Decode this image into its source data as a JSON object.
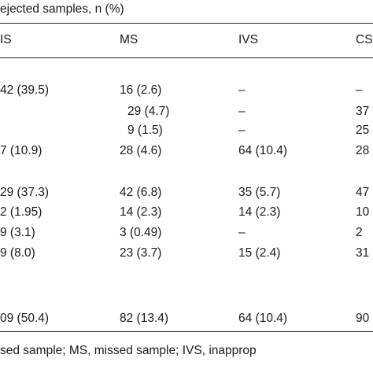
{
  "table": {
    "caption": "ejected samples, n (%)",
    "header": [
      "IS",
      "MS",
      "IVS",
      "CS"
    ],
    "rows": [
      [
        "42 (39.5)",
        "16 (2.6)",
        "–",
        "–"
      ],
      [
        null,
        "29 (4.7)",
        "–",
        "37"
      ],
      [
        null,
        "9 (1.5)",
        "–",
        "25"
      ],
      [
        "7 (10.9)",
        "28 (4.6)",
        "64 (10.4)",
        "28"
      ],
      [
        "29 (37.3)",
        "42 (6.8)",
        "35 (5.7)",
        "47"
      ],
      [
        "2 (1.95)",
        "14 (2.3)",
        "14 (2.3)",
        "10"
      ],
      [
        "9 (3.1)",
        "3 (0.49)",
        "–",
        "2"
      ],
      [
        "9 (8.0)",
        "23 (3.7)",
        "15 (2.4)",
        "31"
      ],
      [
        "09 (50.4)",
        "82 (13.4)",
        "64 (10.4)",
        "90"
      ]
    ],
    "footnote": "sed sample; MS, missed sample; IVS, inapprop"
  }
}
